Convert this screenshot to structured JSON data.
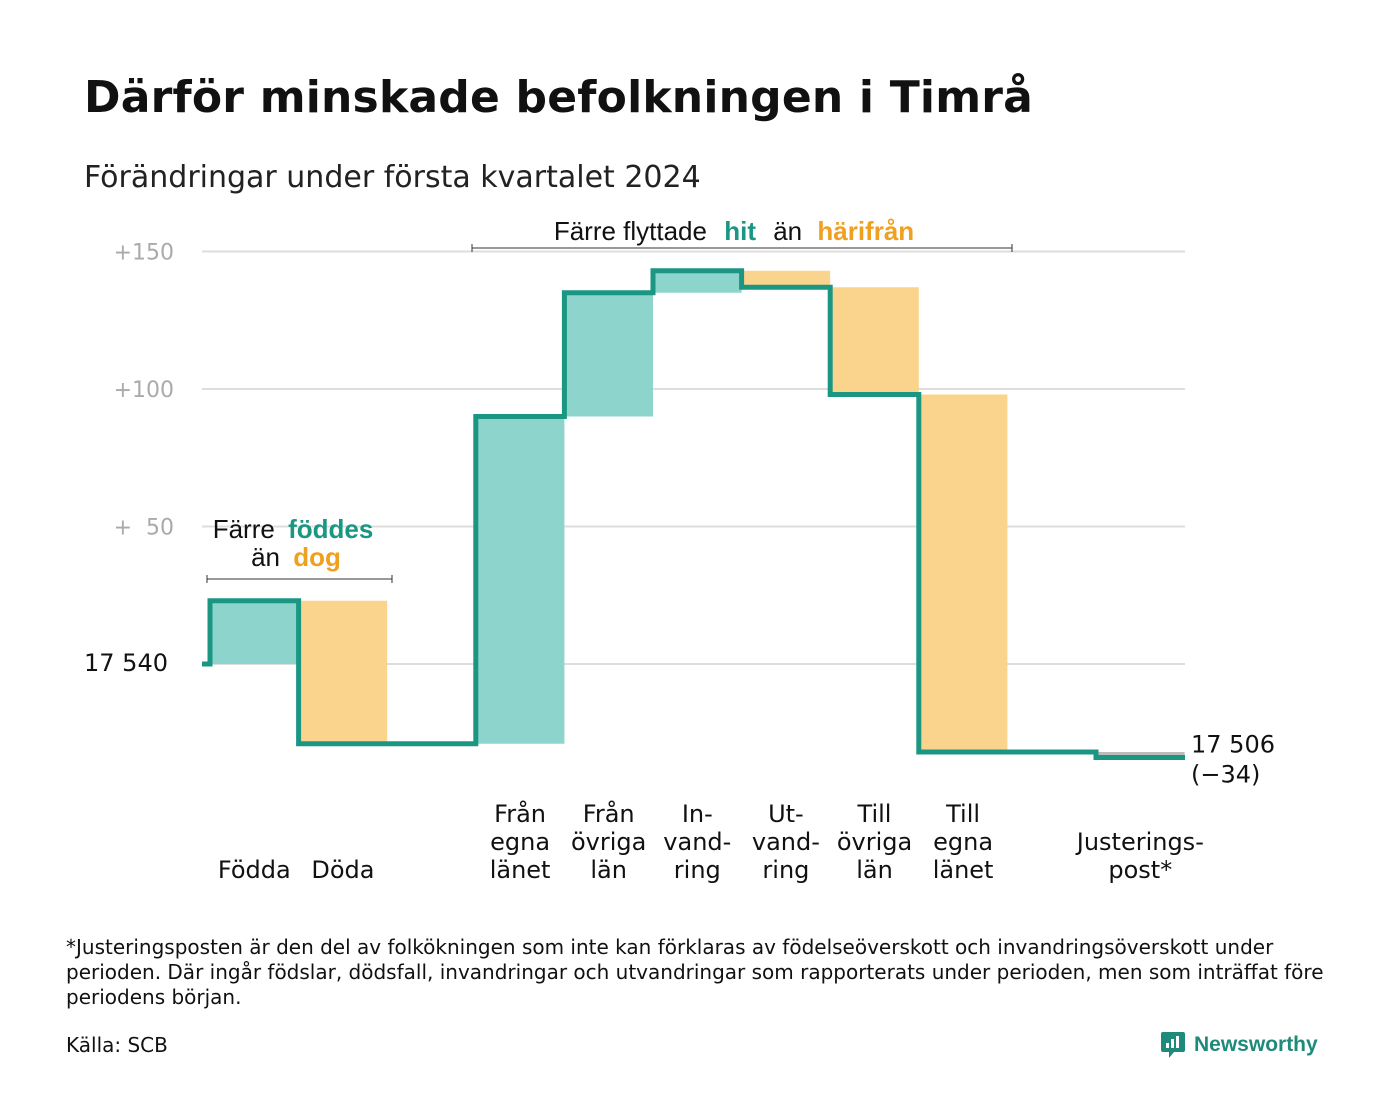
{
  "title": "Därför minskade befolkningen i Timrå",
  "subtitle": "Förändringar under första kvartalet 2024",
  "colors": {
    "increase_fill": "#8dd5cc",
    "decrease_fill": "#fad48c",
    "line": "#1a9683",
    "accent_orange": "#f0a020",
    "adjustment_fill": "#bbbbbb",
    "grid": "#dddddd"
  },
  "annotations": {
    "births": {
      "line1_prefix": "Färre",
      "line1_highlight": "föddes",
      "line2_prefix": "än",
      "line2_highlight": "dog"
    },
    "migration": {
      "prefix": "Färre flyttade",
      "highlight1": "hit",
      "middle": "än",
      "highlight2": "härifrån"
    }
  },
  "start_label": "17 540",
  "end_label_value": "17 506",
  "end_label_change": "(−34)",
  "chart_data": {
    "type": "waterfall",
    "start_value": 17540,
    "end_value": 17506,
    "net_change": -34,
    "y_ticks": [
      {
        "value": 17690,
        "label": "+150"
      },
      {
        "value": 17640,
        "label": "+100"
      },
      {
        "value": 17590,
        "label": "+  50"
      },
      {
        "value": 17540,
        "label": ""
      }
    ],
    "ylim": [
      17495,
      17700
    ],
    "grid": true,
    "steps": [
      {
        "label_lines": [
          "Födda"
        ],
        "change": 23,
        "kind": "increase"
      },
      {
        "label_lines": [
          "Döda"
        ],
        "change": -52,
        "kind": "decrease"
      },
      {
        "label_lines": [],
        "change": 0,
        "kind": "gap"
      },
      {
        "label_lines": [
          "Från",
          "egna",
          "länet"
        ],
        "change": 119,
        "kind": "increase"
      },
      {
        "label_lines": [
          "Från",
          "övriga",
          "län"
        ],
        "change": 45,
        "kind": "increase"
      },
      {
        "label_lines": [
          "In-",
          "vand-",
          "ring"
        ],
        "change": 8,
        "kind": "increase"
      },
      {
        "label_lines": [
          "Ut-",
          "vand-",
          "ring"
        ],
        "change": -6,
        "kind": "decrease"
      },
      {
        "label_lines": [
          "Till",
          "övriga",
          "län"
        ],
        "change": -39,
        "kind": "decrease"
      },
      {
        "label_lines": [
          "Till",
          "egna",
          "länet"
        ],
        "change": -130,
        "kind": "decrease"
      },
      {
        "label_lines": [],
        "change": 0,
        "kind": "gap"
      },
      {
        "label_lines": [
          "Justerings-",
          "post*"
        ],
        "change": -2,
        "kind": "adjustment"
      }
    ]
  },
  "footnote": "*Justeringsposten är den del av folkökningen som inte kan förklaras av födelseöverskott och invandringsöverskott under perioden. Där ingår födslar, dödsfall, invandringar och utvandringar som rapporterats under perioden, men som inträffat före periodens början.",
  "source": "Källa: SCB",
  "logo_text": "Newsworthy"
}
